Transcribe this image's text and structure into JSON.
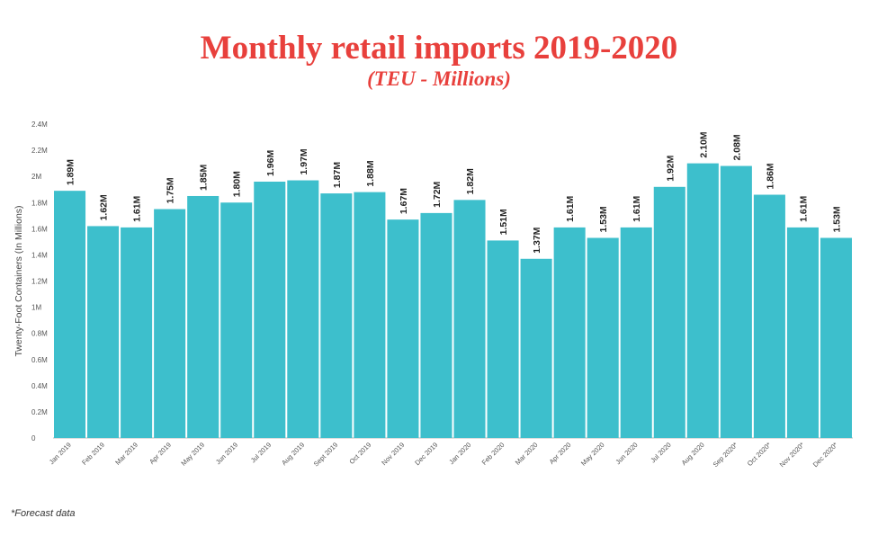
{
  "chart_data": {
    "type": "bar",
    "title": "Monthly retail imports 2019-2020",
    "subtitle": "(TEU - Millions)",
    "ylabel": "Twenty-Foot Containers (In Millions)",
    "xlabel": "",
    "ylim": [
      0,
      2.4
    ],
    "yticks": [
      "0",
      "0.2M",
      "0.4M",
      "0.6M",
      "0.8M",
      "1M",
      "1.2M",
      "1.4M",
      "1.6M",
      "1.8M",
      "2M",
      "2.2M",
      "2.4M"
    ],
    "categories": [
      "Jan 2019",
      "Feb 2019",
      "Mar 2019",
      "Apr 2019",
      "May 2019",
      "Jun 2019",
      "Jul 2019",
      "Aug 2019",
      "Sept 2019",
      "Oct 2019",
      "Nov 2019",
      "Dec 2019",
      "Jan 2020",
      "Feb 2020",
      "Mar 2020",
      "Apr 2020",
      "May 2020",
      "Jun 2020",
      "Jul 2020",
      "Aug 2020",
      "Sep 2020*",
      "Oct 2020*",
      "Nov 2020*",
      "Dec 2020*"
    ],
    "values": [
      1.89,
      1.62,
      1.61,
      1.75,
      1.85,
      1.8,
      1.96,
      1.97,
      1.87,
      1.88,
      1.67,
      1.72,
      1.82,
      1.51,
      1.37,
      1.61,
      1.53,
      1.61,
      1.92,
      2.1,
      2.08,
      1.86,
      1.61,
      1.53
    ],
    "data_labels": [
      "1.89M",
      "1.62M",
      "1.61M",
      "1.75M",
      "1.85M",
      "1.80M",
      "1.96M",
      "1.97M",
      "1.87M",
      "1.88M",
      "1.67M",
      "1.72M",
      "1.82M",
      "1.51M",
      "1.37M",
      "1.61M",
      "1.53M",
      "1.61M",
      "1.92M",
      "2.10M",
      "2.08M",
      "1.86M",
      "1.61M",
      "1.53M"
    ],
    "bar_color": "#3dbfcc",
    "title_color": "#e8403c",
    "grid": false
  },
  "footnote": "*Forecast data"
}
